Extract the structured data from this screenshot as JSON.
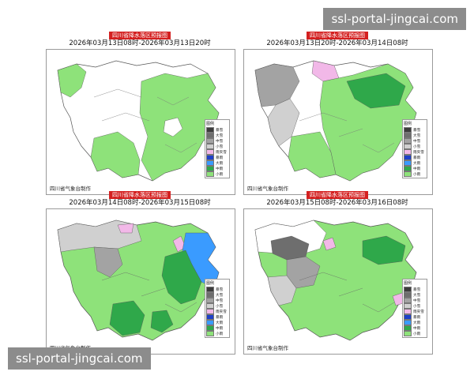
{
  "panels": [
    {
      "badge": "四川省降水落区预报图",
      "title": "2026年03月13日08时-2026年03月13日20时",
      "credit": "四川省气象台制作",
      "legend": [
        "图例",
        "暴雪",
        "大雪",
        "中雪",
        "小雪",
        "雨夹雪",
        "暴雨",
        "大雨",
        "中雨",
        "小雨"
      ]
    },
    {
      "badge": "四川省降水落区预报图",
      "title": "2026年03月13日20时-2026年03月14日08时",
      "credit": "四川省气象台制作",
      "legend": [
        "图例",
        "暴雪",
        "大雪",
        "中雪",
        "小雪",
        "雨夹雪",
        "暴雨",
        "大雨",
        "中雨",
        "小雨"
      ]
    },
    {
      "badge": "四川省降水落区预报图",
      "title": "2026年03月14日08时-2026年03月15日08时",
      "credit": "四川省气象台制作",
      "legend": [
        "图例",
        "暴雪",
        "大雪",
        "中雪",
        "小雪",
        "雨夹雪",
        "暴雨",
        "大雨",
        "中雨",
        "小雨"
      ]
    },
    {
      "badge": "四川省降水落区预报图",
      "title": "2026年03月15日08时-2026年03月16日08时",
      "credit": "四川省气象台制作",
      "legend": [
        "图例",
        "暴雪",
        "大雪",
        "中雪",
        "小雪",
        "雨夹雪",
        "暴雨",
        "大雨",
        "中雨",
        "小雨"
      ]
    }
  ],
  "legend_colors": [
    "#ffffff",
    "#3c3c3c",
    "#6e6e6e",
    "#a3a3a3",
    "#d0d0d0",
    "#f2b8e8",
    "#1e3fc8",
    "#3a9bff",
    "#2fa84a",
    "#8ee27a"
  ],
  "watermark": "ssl-portal-jingcai.com",
  "colors": {
    "badge": "#d42020",
    "light_rain": "#8ee27a",
    "moderate_rain": "#2fa84a",
    "heavy_rain": "#3a9bff",
    "snow": "#a3a3a3",
    "sleet": "#f2b8e8",
    "boundary": "#555555"
  }
}
